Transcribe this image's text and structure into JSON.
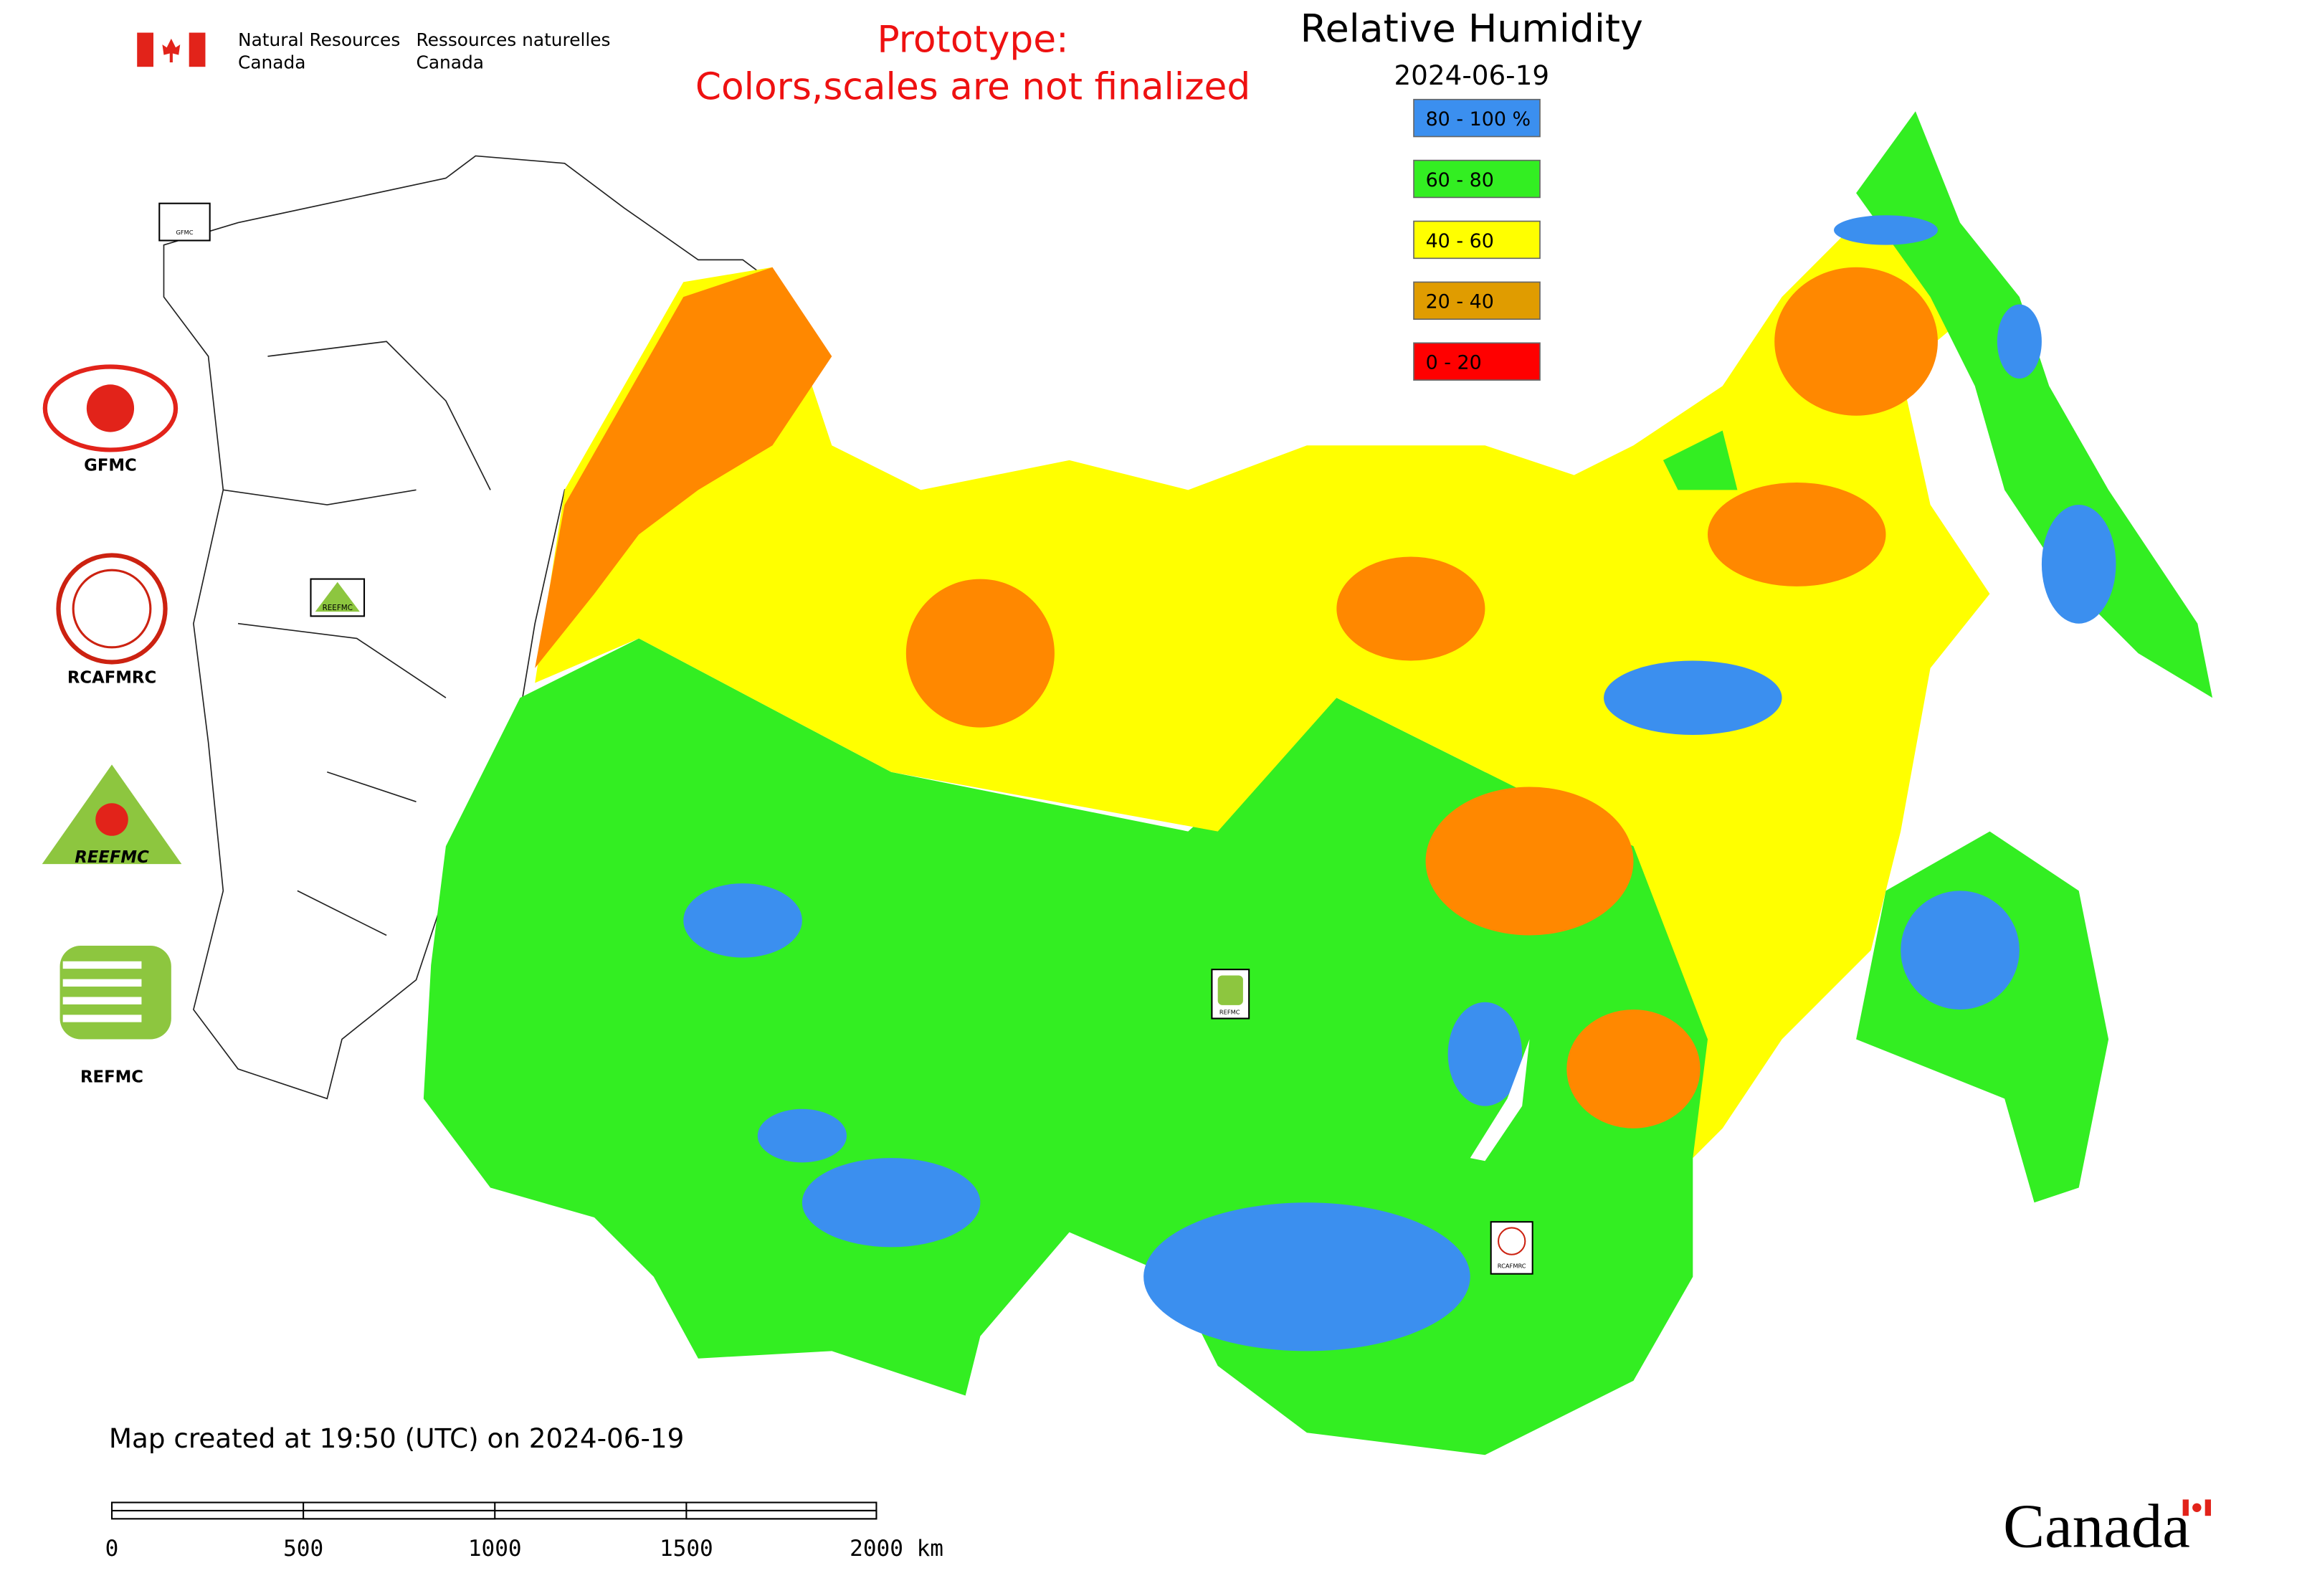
{
  "header": {
    "dept_en_1": "Natural Resources",
    "dept_en_2": "Canada",
    "dept_fr_1": "Ressources naturelles",
    "dept_fr_2": "Canada"
  },
  "notice": [
    "Prototype:",
    "Colors,scales are not finalized"
  ],
  "legend": {
    "title": "Relative Humidity",
    "date": "2024-06-19",
    "items": [
      {
        "label": "80 - 100 %",
        "color": "#3b8fef"
      },
      {
        "label": "60 - 80",
        "color": "#33ee22"
      },
      {
        "label": "40 - 60",
        "color": "#ffff00"
      },
      {
        "label": "20 - 40",
        "color": "#e09c00"
      },
      {
        "label": "0 - 20",
        "color": "#ff0000"
      }
    ]
  },
  "logos": [
    "GFMC",
    "RCAFMRC",
    "REEFMC",
    "REFMC"
  ],
  "map_markers": [
    "GFMC",
    "REEFMC",
    "REFMC",
    "RCAFMRC"
  ],
  "footer": {
    "created": "Map created at 19:50 (UTC) on 2024-06-19",
    "scale_labels": [
      "0",
      "500",
      "1000",
      "1500",
      "2000 km"
    ],
    "wordmark": "Canada"
  }
}
